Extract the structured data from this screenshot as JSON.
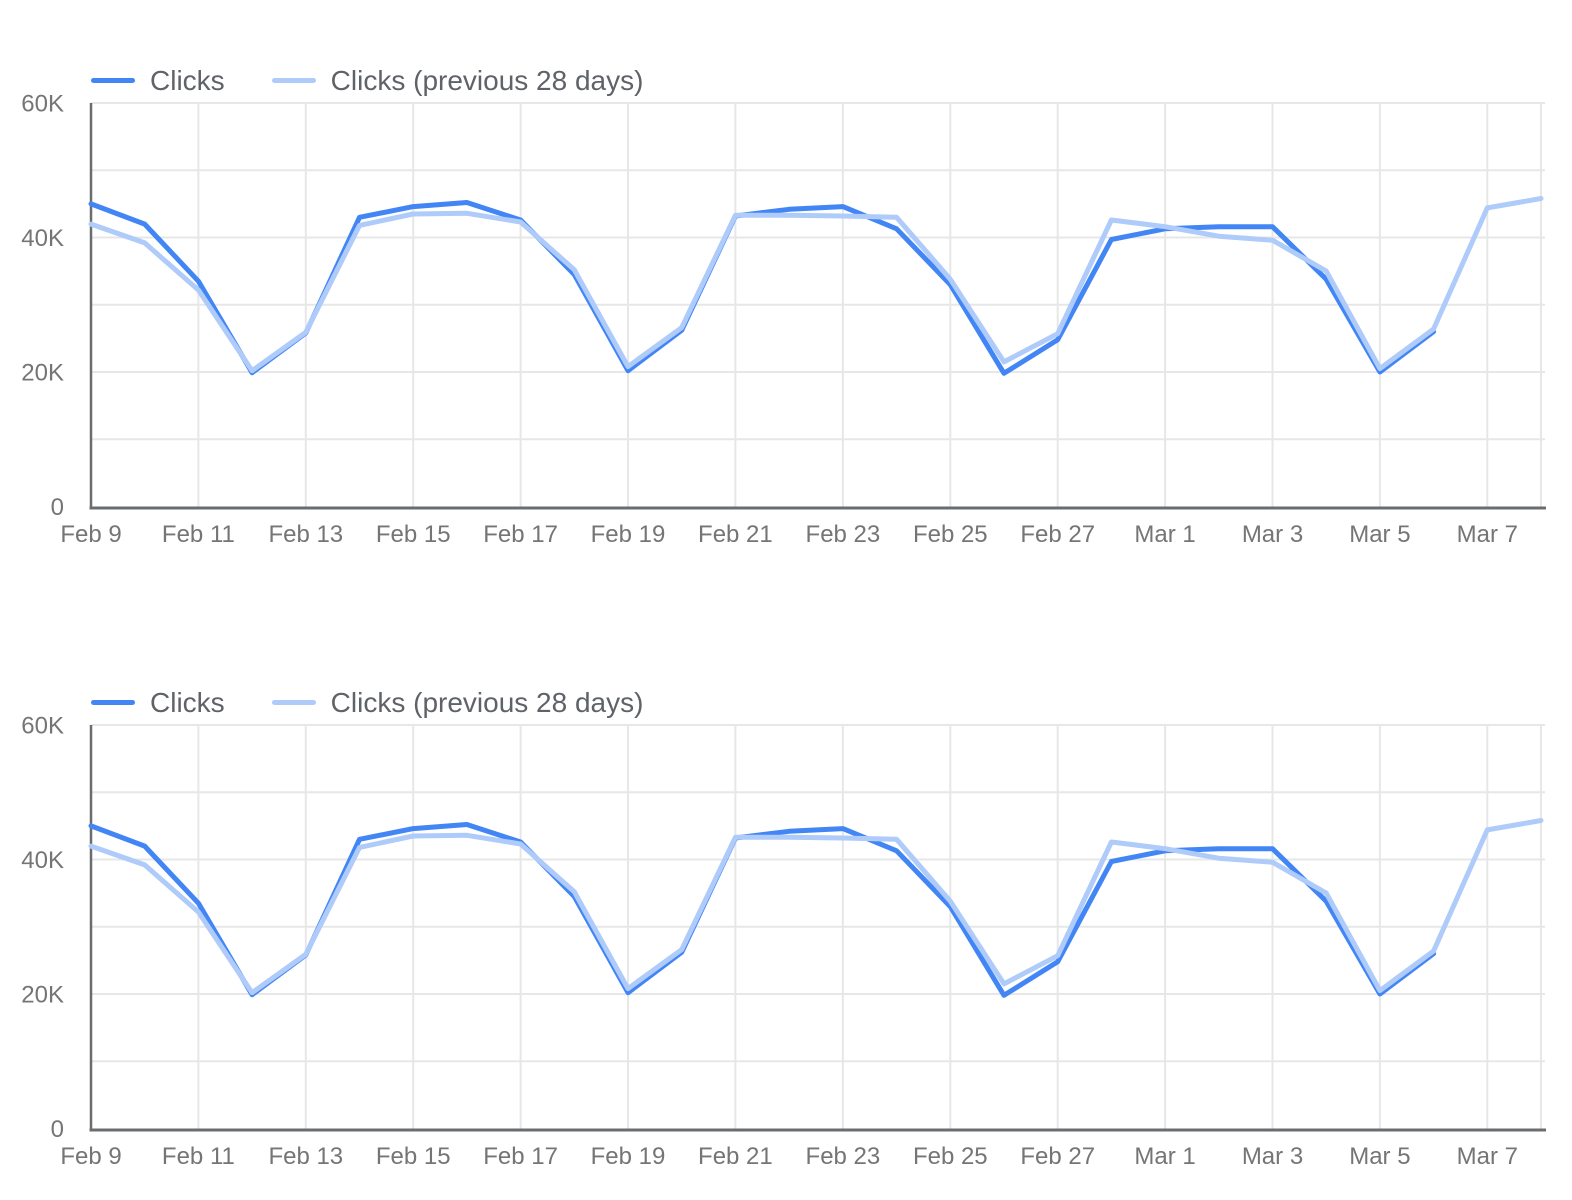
{
  "style": {
    "background": "#ffffff",
    "grid_color": "#e7e7e7",
    "axis_color": "#6a6d70",
    "tick_text_color": "#757575",
    "legend_text_color": "#5f6368"
  },
  "chart_data": [
    {
      "type": "line",
      "title": "",
      "legend_position": "top-left",
      "grid": true,
      "categories": [
        "Feb 9",
        "Feb 10",
        "Feb 11",
        "Feb 12",
        "Feb 13",
        "Feb 14",
        "Feb 15",
        "Feb 16",
        "Feb 17",
        "Feb 18",
        "Feb 19",
        "Feb 20",
        "Feb 21",
        "Feb 22",
        "Feb 23",
        "Feb 24",
        "Feb 25",
        "Feb 26",
        "Feb 27",
        "Feb 28",
        "Mar 1",
        "Mar 2",
        "Mar 3",
        "Mar 4",
        "Mar 5",
        "Mar 6",
        "Mar 7",
        "Mar 8"
      ],
      "series": [
        {
          "name": "Clicks",
          "color": "#4285f4",
          "values": [
            45000,
            42000,
            33500,
            19900,
            25800,
            43000,
            44600,
            45200,
            42600,
            34500,
            20200,
            26200,
            43200,
            44200,
            44600,
            41300,
            33000,
            19800,
            24800,
            39700,
            41300,
            41600,
            41600,
            33800,
            20000,
            26000
          ]
        },
        {
          "name": "Clicks (previous 28 days)",
          "color": "#aecbfa",
          "values": [
            42000,
            39200,
            32200,
            20200,
            25900,
            41800,
            43500,
            43600,
            42300,
            35200,
            20800,
            26600,
            43300,
            43300,
            43200,
            43000,
            33800,
            21500,
            25700,
            42600,
            41600,
            40200,
            39600,
            35000,
            20500,
            26400,
            44400,
            45800
          ]
        }
      ],
      "ylim": [
        0,
        60000
      ],
      "ytick_values": [
        0,
        20000,
        40000,
        60000
      ],
      "ytick_labels": [
        "0",
        "20K",
        "40K",
        "60K"
      ],
      "minor_gridline_values": [
        10000,
        30000,
        50000
      ],
      "xtick_indices": [
        0,
        2,
        4,
        6,
        8,
        10,
        12,
        14,
        16,
        18,
        20,
        22,
        24,
        26
      ],
      "xtick_labels": [
        "Feb 9",
        "Feb 11",
        "Feb 13",
        "Feb 15",
        "Feb 17",
        "Feb 19",
        "Feb 21",
        "Feb 23",
        "Feb 25",
        "Feb 27",
        "Mar 1",
        "Mar 3",
        "Mar 5",
        "Mar 7"
      ]
    },
    {
      "type": "line",
      "title": "",
      "legend_position": "top-left",
      "grid": true,
      "categories": [
        "Feb 9",
        "Feb 10",
        "Feb 11",
        "Feb 12",
        "Feb 13",
        "Feb 14",
        "Feb 15",
        "Feb 16",
        "Feb 17",
        "Feb 18",
        "Feb 19",
        "Feb 20",
        "Feb 21",
        "Feb 22",
        "Feb 23",
        "Feb 24",
        "Feb 25",
        "Feb 26",
        "Feb 27",
        "Feb 28",
        "Mar 1",
        "Mar 2",
        "Mar 3",
        "Mar 4",
        "Mar 5",
        "Mar 6",
        "Mar 7",
        "Mar 8"
      ],
      "series": [
        {
          "name": "Clicks",
          "color": "#4285f4",
          "values": [
            45000,
            42000,
            33500,
            19900,
            25800,
            43000,
            44600,
            45200,
            42600,
            34500,
            20200,
            26200,
            43200,
            44200,
            44600,
            41300,
            33000,
            19800,
            24800,
            39700,
            41300,
            41600,
            41600,
            33800,
            20000,
            26000
          ]
        },
        {
          "name": "Clicks (previous 28 days)",
          "color": "#aecbfa",
          "values": [
            42000,
            39200,
            32200,
            20200,
            25900,
            41800,
            43500,
            43600,
            42300,
            35200,
            20800,
            26600,
            43300,
            43300,
            43200,
            43000,
            33800,
            21500,
            25700,
            42600,
            41600,
            40200,
            39600,
            35000,
            20500,
            26400,
            44400,
            45800
          ]
        }
      ],
      "ylim": [
        0,
        60000
      ],
      "ytick_values": [
        0,
        20000,
        40000,
        60000
      ],
      "ytick_labels": [
        "0",
        "20K",
        "40K",
        "60K"
      ],
      "minor_gridline_values": [
        10000,
        30000,
        50000
      ],
      "xtick_indices": [
        0,
        2,
        4,
        6,
        8,
        10,
        12,
        14,
        16,
        18,
        20,
        22,
        24,
        26
      ],
      "xtick_labels": [
        "Feb 9",
        "Feb 11",
        "Feb 13",
        "Feb 15",
        "Feb 17",
        "Feb 19",
        "Feb 21",
        "Feb 23",
        "Feb 25",
        "Feb 27",
        "Mar 1",
        "Mar 3",
        "Mar 5",
        "Mar 7"
      ]
    }
  ]
}
